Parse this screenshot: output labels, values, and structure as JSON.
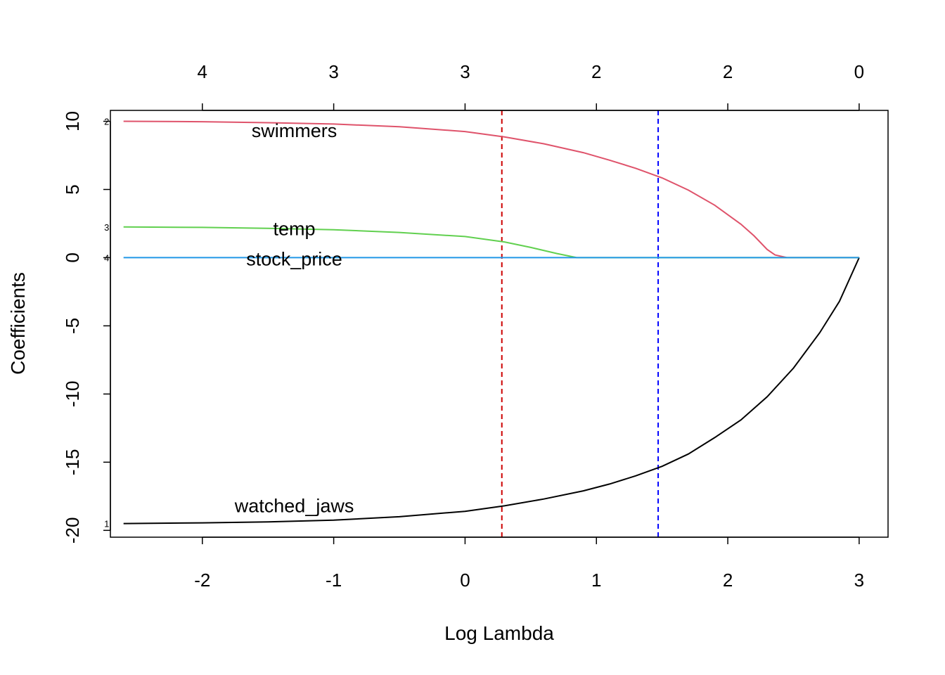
{
  "chart_data": {
    "type": "line",
    "xlabel": "Log Lambda",
    "ylabel": "Coefficients",
    "xlim": [
      -2.7,
      3.22
    ],
    "ylim": [
      -20.5,
      10.8
    ],
    "x_ticks": [
      -2,
      -1,
      0,
      1,
      2,
      3
    ],
    "x_tick_labels": [
      "-2",
      "-1",
      "0",
      "1",
      "2",
      "3"
    ],
    "y_ticks": [
      10,
      5,
      0,
      -5,
      -10,
      -15,
      -20
    ],
    "y_tick_labels": [
      "10",
      "5",
      "0",
      "-5",
      "-10",
      "-15",
      "-20"
    ],
    "top_axis": {
      "ticks": [
        -2,
        -1,
        0,
        1,
        2,
        3
      ],
      "labels": [
        "4",
        "3",
        "3",
        "2",
        "2",
        "0"
      ]
    },
    "vlines": [
      {
        "x": 0.28,
        "color": "#CD0000",
        "style": "dashed"
      },
      {
        "x": 1.47,
        "color": "#0000FF",
        "style": "dashed"
      }
    ],
    "series": [
      {
        "name": "watched_jaws",
        "index_label": "1",
        "color": "#000000",
        "label_at": [
          -1.3,
          -18.2
        ],
        "points": [
          [
            -2.6,
            -19.5
          ],
          [
            -2.0,
            -19.45
          ],
          [
            -1.5,
            -19.38
          ],
          [
            -1.0,
            -19.25
          ],
          [
            -0.5,
            -19.0
          ],
          [
            0.0,
            -18.6
          ],
          [
            0.3,
            -18.2
          ],
          [
            0.6,
            -17.7
          ],
          [
            0.9,
            -17.1
          ],
          [
            1.1,
            -16.6
          ],
          [
            1.3,
            -16.0
          ],
          [
            1.5,
            -15.3
          ],
          [
            1.7,
            -14.4
          ],
          [
            1.9,
            -13.2
          ],
          [
            2.1,
            -11.9
          ],
          [
            2.3,
            -10.2
          ],
          [
            2.5,
            -8.1
          ],
          [
            2.7,
            -5.5
          ],
          [
            2.85,
            -3.2
          ],
          [
            3.0,
            0.0
          ]
        ]
      },
      {
        "name": "swimmers",
        "index_label": "2",
        "color": "#DF536B",
        "label_at": [
          -1.3,
          9.3
        ],
        "points": [
          [
            -2.6,
            10.0
          ],
          [
            -2.0,
            9.97
          ],
          [
            -1.5,
            9.9
          ],
          [
            -1.0,
            9.8
          ],
          [
            -0.5,
            9.6
          ],
          [
            0.0,
            9.25
          ],
          [
            0.3,
            8.85
          ],
          [
            0.6,
            8.35
          ],
          [
            0.9,
            7.7
          ],
          [
            1.1,
            7.15
          ],
          [
            1.3,
            6.55
          ],
          [
            1.5,
            5.85
          ],
          [
            1.7,
            4.95
          ],
          [
            1.9,
            3.85
          ],
          [
            2.1,
            2.45
          ],
          [
            2.2,
            1.6
          ],
          [
            2.3,
            0.6
          ],
          [
            2.36,
            0.2
          ],
          [
            2.45,
            0.0
          ],
          [
            3.0,
            0.0
          ]
        ]
      },
      {
        "name": "temp",
        "index_label": "3",
        "color": "#61D04F",
        "label_at": [
          -1.3,
          2.1
        ],
        "points": [
          [
            -2.6,
            2.25
          ],
          [
            -2.0,
            2.22
          ],
          [
            -1.5,
            2.15
          ],
          [
            -1.0,
            2.05
          ],
          [
            -0.5,
            1.85
          ],
          [
            0.0,
            1.55
          ],
          [
            0.3,
            1.15
          ],
          [
            0.5,
            0.75
          ],
          [
            0.7,
            0.3
          ],
          [
            0.85,
            0.0
          ],
          [
            3.0,
            0.0
          ]
        ]
      },
      {
        "name": "stock_price",
        "index_label": "4",
        "color": "#2297E6",
        "label_at": [
          -1.3,
          -0.1
        ],
        "points": [
          [
            -2.6,
            0.0
          ],
          [
            3.0,
            0.0
          ]
        ]
      }
    ]
  }
}
